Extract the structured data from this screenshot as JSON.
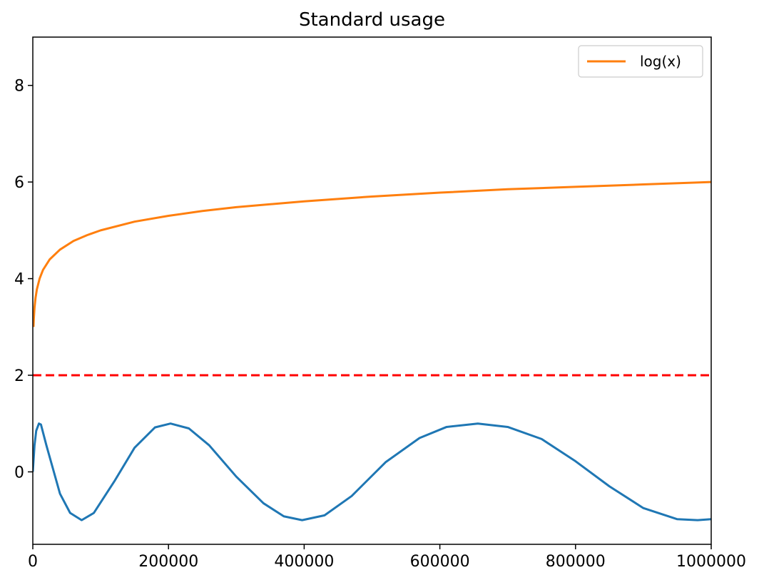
{
  "chart_data": {
    "type": "line",
    "title": "Standard usage",
    "xlabel": "",
    "ylabel": "",
    "xlim": [
      0,
      1000000
    ],
    "ylim": [
      -1.5,
      9.0
    ],
    "xticks": [
      0,
      200000,
      400000,
      600000,
      800000,
      1000000
    ],
    "xtick_labels": [
      "0",
      "200000",
      "400000",
      "600000",
      "800000",
      "1000000"
    ],
    "yticks": [
      0,
      2,
      4,
      6,
      8
    ],
    "ytick_labels": [
      "0",
      "2",
      "4",
      "6",
      "8"
    ],
    "grid": false,
    "legend": {
      "placement": "top-right",
      "entries": [
        "log(x)"
      ]
    },
    "series": [
      {
        "label_shown_in_legend": false,
        "color": "#1f77b4",
        "style": "solid",
        "x": [
          0,
          2500,
          5000,
          9000,
          12000,
          20000,
          40000,
          55000,
          72000,
          90000,
          120000,
          150000,
          180000,
          203000,
          230000,
          260000,
          300000,
          340000,
          370000,
          397000,
          430000,
          470000,
          520000,
          570000,
          610000,
          656000,
          700000,
          750000,
          800000,
          850000,
          900000,
          950000,
          980000,
          1000000
        ],
        "values": [
          0.0,
          0.55,
          0.85,
          1.0,
          0.98,
          0.55,
          -0.45,
          -0.85,
          -1.0,
          -0.85,
          -0.2,
          0.5,
          0.92,
          1.0,
          0.9,
          0.55,
          -0.1,
          -0.65,
          -0.92,
          -1.0,
          -0.9,
          -0.5,
          0.2,
          0.7,
          0.93,
          1.0,
          0.93,
          0.68,
          0.22,
          -0.3,
          -0.75,
          -0.98,
          -1.0,
          -0.98
        ]
      },
      {
        "name": "log(x)",
        "color": "#ff7f0e",
        "style": "solid",
        "x": [
          1000,
          1500,
          2500,
          4000,
          6000,
          10000,
          15000,
          25000,
          40000,
          60000,
          80000,
          100000,
          150000,
          200000,
          250000,
          300000,
          400000,
          500000,
          600000,
          700000,
          800000,
          900000,
          1000000
        ],
        "values": [
          3.0,
          3.18,
          3.4,
          3.6,
          3.78,
          4.0,
          4.18,
          4.4,
          4.6,
          4.78,
          4.9,
          5.0,
          5.18,
          5.3,
          5.4,
          5.48,
          5.6,
          5.7,
          5.78,
          5.85,
          5.9,
          5.95,
          6.0
        ]
      },
      {
        "label_shown_in_legend": false,
        "color": "#ff0000",
        "style": "dashed",
        "x": [
          0,
          1000000
        ],
        "values": [
          2.0,
          2.0
        ]
      }
    ]
  }
}
